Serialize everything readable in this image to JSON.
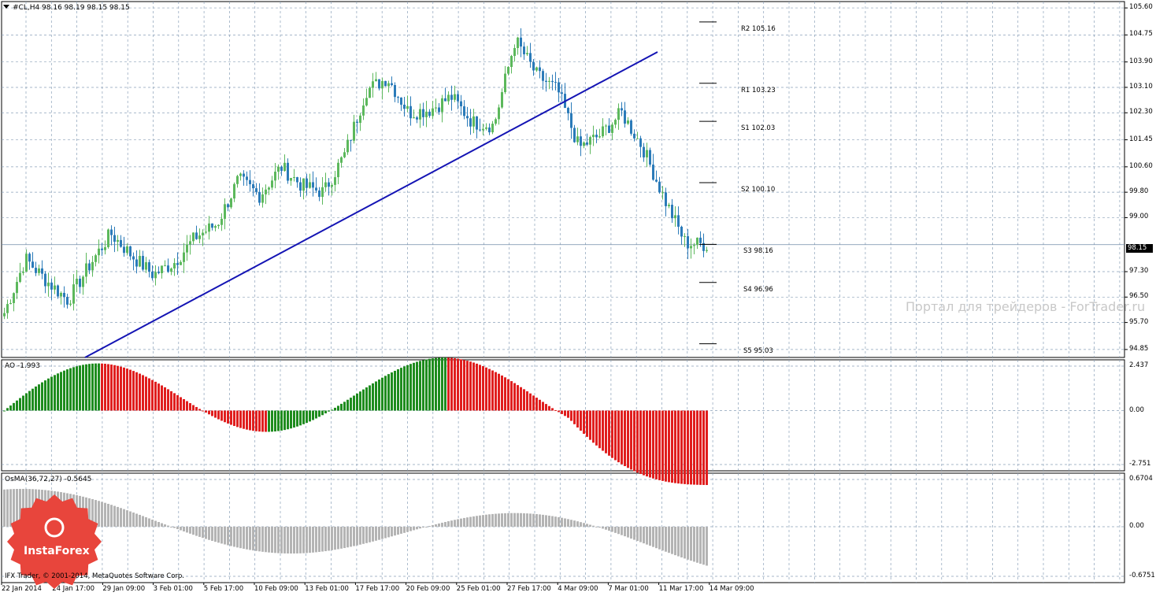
{
  "chart_header": {
    "symbol_info": "#CL,H4  98.16 98.19 98.15 98.15"
  },
  "price_axis": {
    "labels": [
      "105.60",
      "104.75",
      "103.90",
      "103.10",
      "102.30",
      "101.45",
      "100.60",
      "99.80",
      "99.00",
      "97.30",
      "96.50",
      "95.70",
      "94.85"
    ],
    "current_price": "98.15"
  },
  "ao_panel": {
    "title": "AO -1.993",
    "axis_labels": [
      "2.437",
      "0.00",
      "-2.751"
    ]
  },
  "osma_panel": {
    "title": "OsMA(36,72,27) -0.5645",
    "axis_labels": [
      "0.6704",
      "0.00",
      "-0.6751"
    ]
  },
  "date_axis": {
    "labels": [
      "22 Jan 2014",
      "24 Jan 17:00",
      "29 Jan 09:00",
      "3 Feb 01:00",
      "5 Feb 17:00",
      "10 Feb 09:00",
      "13 Feb 01:00",
      "17 Feb 17:00",
      "20 Feb 09:00",
      "25 Feb 01:00",
      "27 Feb 17:00",
      "4 Mar 09:00",
      "7 Mar 01:00",
      "11 Mar 17:00",
      "14 Mar 09:00"
    ]
  },
  "pivot_levels": [
    {
      "label": "R2 105.16",
      "price": 105.16
    },
    {
      "label": "R1 103.23",
      "price": 103.23
    },
    {
      "label": "S1 102.03",
      "price": 102.03
    },
    {
      "label": "S2 100.10",
      "price": 100.1
    },
    {
      "label": "S3 98.16",
      "price": 98.16
    },
    {
      "label": "S4 96.96",
      "price": 96.96
    },
    {
      "label": "S5 95.03",
      "price": 95.03
    }
  ],
  "watermark": "Портал для трейдеров - ForTrader.ru",
  "branding": {
    "logo_text": "InstaForex",
    "copyright": "IFX Trader, © 2001-2014, MetaQuotes Software Corp."
  },
  "colors": {
    "bull_candle": "#5cb85c",
    "bear_candle": "#2b7bb9",
    "trendline": "#1414b4",
    "ao_up": "#1e8c1e",
    "ao_down": "#e01e1e",
    "osma": "#b4b4b4",
    "grid": "#8aa0b8",
    "badge": "#e8453c"
  },
  "chart_data": {
    "type": "candlestick",
    "series_anchor_closes": [
      96.0,
      97.7,
      97.0,
      96.4,
      97.5,
      98.5,
      97.8,
      97.2,
      97.6,
      98.4,
      98.8,
      100.2,
      99.7,
      100.6,
      100.0,
      99.8,
      101.0,
      103.0,
      103.4,
      102.3,
      102.4,
      102.8,
      102.0,
      101.9,
      104.6,
      103.5,
      103.0,
      101.2,
      101.6,
      102.3,
      101.2,
      99.6,
      98.2,
      98.15
    ],
    "pivots": [
      105.16,
      103.23,
      102.03,
      100.1,
      98.16,
      96.96,
      95.03
    ],
    "price_range": [
      94.6,
      105.8
    ]
  }
}
